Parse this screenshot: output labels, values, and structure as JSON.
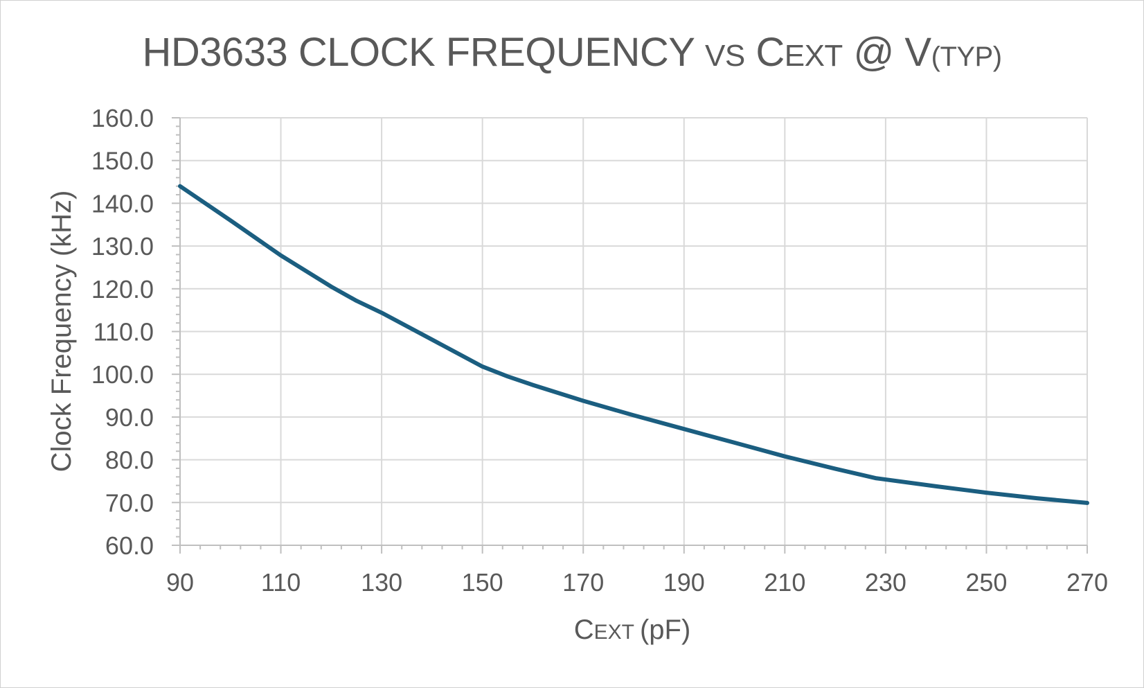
{
  "title": {
    "part1": "HD3633 CLOCK FREQUENCY",
    "vs": "VS",
    "c": "C",
    "ext": "EXT",
    "at_v": "@ V",
    "typ": "(TYP)"
  },
  "colors": {
    "series": "#1b5e80",
    "grid": "#d9d9d9",
    "axis": "#bfbfbf",
    "text": "#595959"
  },
  "chart_data": {
    "type": "line",
    "title": "HD3633 CLOCK FREQUENCY VS CEXT @ V(TYP)",
    "xlabel": "CEXT (pF)",
    "xlabel_parts": {
      "c": "C",
      "ext": "EXT",
      "unit": "(pF)"
    },
    "ylabel": "Clock Frequency (kHz)",
    "xlim": [
      90,
      270
    ],
    "ylim": [
      60,
      160
    ],
    "x_ticks": [
      90,
      110,
      130,
      150,
      170,
      190,
      210,
      230,
      250,
      270
    ],
    "x_tick_labels": [
      "90",
      "110",
      "130",
      "150",
      "170",
      "190",
      "210",
      "230",
      "250",
      "270"
    ],
    "y_ticks": [
      60,
      70,
      80,
      90,
      100,
      110,
      120,
      130,
      140,
      150,
      160
    ],
    "y_tick_labels": [
      "60.0",
      "70.0",
      "80.0",
      "90.0",
      "100.0",
      "110.0",
      "120.0",
      "130.0",
      "140.0",
      "150.0",
      "160.0"
    ],
    "grid": true,
    "series": [
      {
        "x": [
          90,
          100,
          110,
          120,
          125,
          130,
          140,
          150,
          155,
          160,
          170,
          180,
          190,
          200,
          210,
          220,
          228,
          240,
          250,
          260,
          270
        ],
        "y": [
          144.0,
          136.0,
          127.8,
          120.5,
          117.2,
          114.4,
          108.1,
          101.8,
          99.5,
          97.5,
          93.8,
          90.4,
          87.2,
          84.0,
          80.8,
          77.9,
          75.7,
          73.8,
          72.3,
          71.0,
          69.9
        ]
      }
    ]
  }
}
